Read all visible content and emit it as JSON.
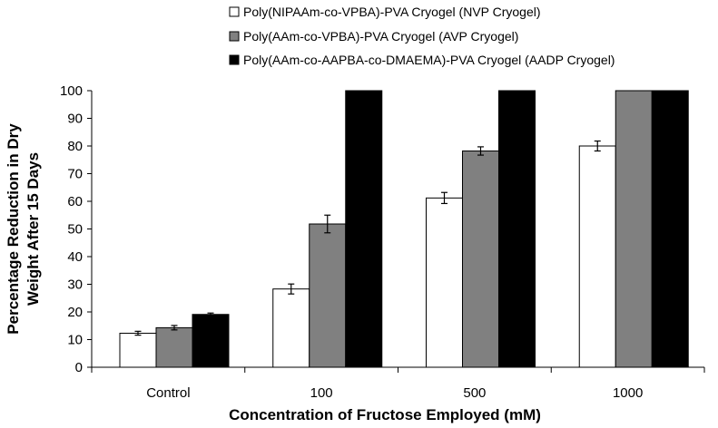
{
  "chart_data": {
    "type": "bar",
    "title": "",
    "xlabel": "Concentration of Fructose Employed (mM)",
    "ylabel_lines": [
      "Percentage Reduction in Dry",
      "Weight After 15 Days"
    ],
    "categories": [
      "Control",
      "100",
      "500",
      "1000"
    ],
    "ylim": [
      0,
      100
    ],
    "yticks": [
      0,
      10,
      20,
      30,
      40,
      50,
      60,
      70,
      80,
      90,
      100
    ],
    "grid": false,
    "legend_position": "top",
    "series": [
      {
        "name": "Poly(NIPAAm-co-VPBA)-PVA Cryogel (NVP Cryogel)",
        "color": "#ffffff",
        "values": [
          12.3,
          28.3,
          61.2,
          80.0
        ],
        "errors": [
          0.7,
          1.8,
          2.0,
          1.8
        ]
      },
      {
        "name": "Poly(AAm-co-VPBA)-PVA Cryogel (AVP Cryogel)",
        "color": "#808080",
        "values": [
          14.3,
          51.8,
          78.2,
          100
        ],
        "errors": [
          0.8,
          3.2,
          1.5,
          0
        ]
      },
      {
        "name": "Poly(AAm-co-AAPBA-co-DMAEMA)-PVA Cryogel (AADP Cryogel)",
        "color": "#000000",
        "values": [
          19.1,
          100,
          100,
          100
        ],
        "errors": [
          0.5,
          0,
          0,
          0
        ]
      }
    ]
  }
}
